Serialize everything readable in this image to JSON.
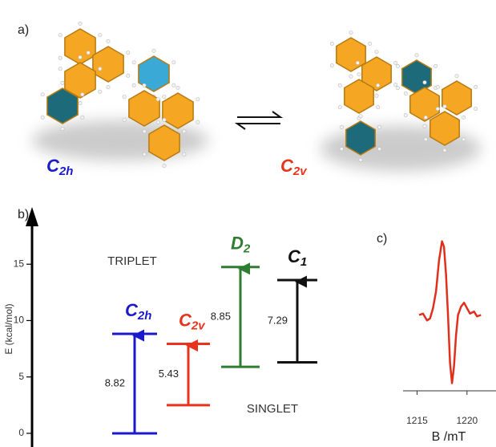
{
  "panel_labels": [
    "a)",
    "b)",
    "c)"
  ],
  "molecules": [
    {
      "label": "C",
      "subscript": "2h",
      "color": "#1a1acc"
    },
    {
      "label": "C",
      "subscript": "2v",
      "color": "#e8321c"
    }
  ],
  "chart_data": [
    {
      "type": "energy-levels",
      "ylabel": "E (kcal/mol)",
      "ylim": [
        -1,
        19.5
      ],
      "yticks": [
        0,
        5,
        10,
        15
      ],
      "state_labels": [
        "TRIPLET",
        "SINGLET"
      ],
      "series": [
        {
          "name": "C",
          "subscript": "2h",
          "color": "#1a1acc",
          "values": [
            0,
            8.82
          ]
        },
        {
          "name": "C",
          "subscript": "2v",
          "color": "#e8321c",
          "values": [
            2.5,
            5.43
          ]
        },
        {
          "name": "D",
          "subscript": "2",
          "color": "#2e7d32",
          "values": [
            5.9,
            8.85
          ]
        },
        {
          "name": "C",
          "subscript": "1",
          "color": "#111111",
          "values": [
            6.3,
            7.29
          ]
        }
      ]
    },
    {
      "type": "line",
      "xlabel": "B /mT",
      "color": "#e0301c",
      "xlim": [
        1213.6,
        1222.9
      ],
      "xticks": [
        1215,
        1220
      ],
      "ylim": [
        -1.5,
        1.5
      ],
      "x": [
        1215.2,
        1215.6,
        1216.0,
        1216.3,
        1216.6,
        1216.9,
        1217.2,
        1217.5,
        1217.7,
        1217.9,
        1218.1,
        1218.3,
        1218.5,
        1218.7,
        1218.9,
        1219.1,
        1219.4,
        1219.7,
        1220.0,
        1220.3,
        1220.7,
        1221.0,
        1221.4
      ],
      "values": [
        0,
        0.02,
        -0.08,
        -0.05,
        0.1,
        0.35,
        0.8,
        1.08,
        1.0,
        0.6,
        0.0,
        -0.7,
        -1.0,
        -0.75,
        -0.3,
        0.0,
        0.12,
        0.18,
        0.1,
        0.02,
        0.05,
        -0.02,
        0.0
      ]
    }
  ]
}
